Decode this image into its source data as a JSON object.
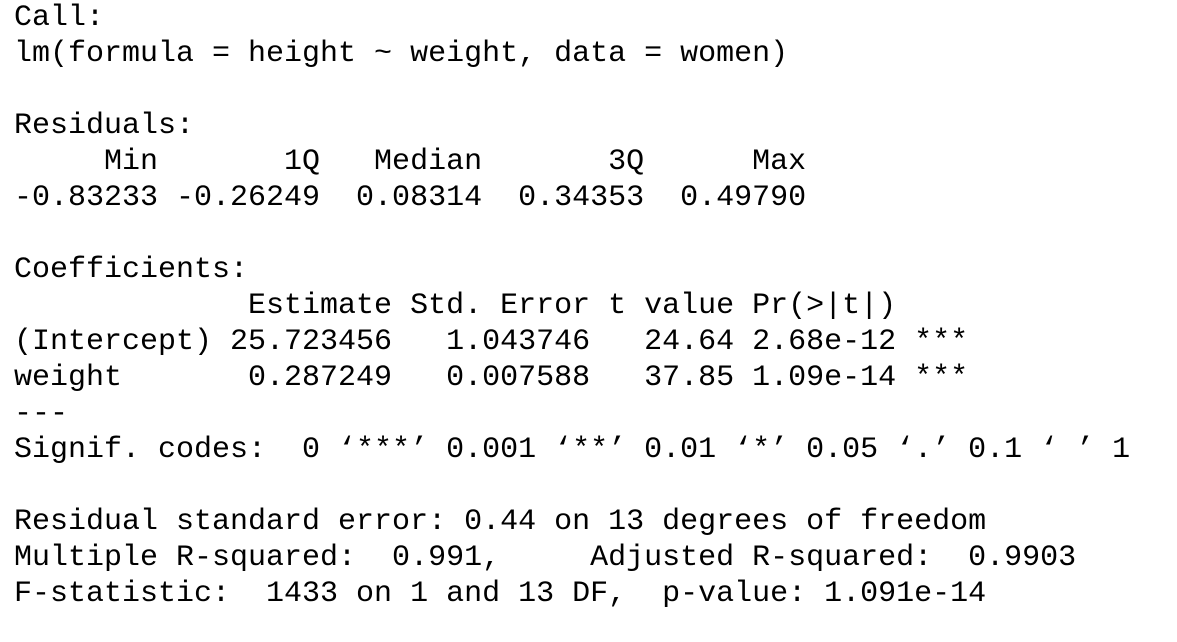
{
  "call": {
    "label": "Call:",
    "formula": "lm(formula = height ~ weight, data = women)"
  },
  "residuals": {
    "label": "Residuals:",
    "header": "     Min       1Q   Median       3Q      Max ",
    "values": "-0.83233 -0.26249  0.08314  0.34353  0.49790 "
  },
  "coefficients": {
    "label": "Coefficients:",
    "header": "             Estimate Std. Error t value Pr(>|t|)    ",
    "rows": [
      "(Intercept) 25.723456   1.043746   24.64 2.68e-12 ***",
      "weight       0.287249   0.007588   37.85 1.09e-14 ***"
    ],
    "separator": "---",
    "signif": "Signif. codes:  0 ‘***’ 0.001 ‘**’ 0.01 ‘*’ 0.05 ‘.’ 0.1 ‘ ’ 1"
  },
  "summary": [
    "Residual standard error: 0.44 on 13 degrees of freedom",
    "Multiple R-squared:  0.991,     Adjusted R-squared:  0.9903 ",
    "F-statistic:  1433 on 1 and 13 DF,  p-value: 1.091e-14"
  ]
}
